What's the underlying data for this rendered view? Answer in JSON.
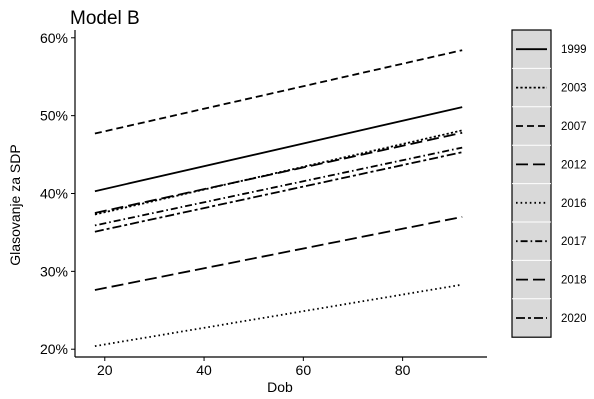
{
  "chart_data": {
    "type": "line",
    "title": "Model B",
    "xlabel": "Dob",
    "ylabel": "Glasovanje za SDP",
    "xlim": [
      14,
      97
    ],
    "ylim": [
      0.19,
      0.61
    ],
    "x_ticks": [
      20,
      40,
      60,
      80
    ],
    "x_tick_labels": [
      "20",
      "40",
      "60",
      "80"
    ],
    "y_ticks": [
      0.2,
      0.3,
      0.4,
      0.5,
      0.6
    ],
    "y_tick_labels": [
      "20%",
      "30%",
      "40%",
      "50%",
      "60%"
    ],
    "grid": false,
    "legend_position": "right",
    "series": [
      {
        "name": "1999",
        "dash": "solid",
        "x": [
          18,
          92
        ],
        "values": [
          0.403,
          0.511
        ]
      },
      {
        "name": "2003",
        "dash": "dotted",
        "x": [
          18,
          92
        ],
        "values": [
          0.373,
          0.481
        ]
      },
      {
        "name": "2007",
        "dash": "dashed",
        "x": [
          18,
          92
        ],
        "values": [
          0.477,
          0.584
        ]
      },
      {
        "name": "2012",
        "dash": "longdash",
        "x": [
          18,
          92
        ],
        "values": [
          0.375,
          0.478
        ]
      },
      {
        "name": "2016",
        "dash": "dotted-fine",
        "x": [
          18,
          92
        ],
        "values": [
          0.204,
          0.283
        ]
      },
      {
        "name": "2017",
        "dash": "dotdash",
        "x": [
          18,
          92
        ],
        "values": [
          0.359,
          0.459
        ]
      },
      {
        "name": "2018",
        "dash": "longdash",
        "x": [
          18,
          92
        ],
        "values": [
          0.276,
          0.37
        ]
      },
      {
        "name": "2020",
        "dash": "twodash",
        "x": [
          18,
          92
        ],
        "values": [
          0.351,
          0.453
        ]
      }
    ]
  },
  "colors": {
    "line": "#000000",
    "legend_fill": "#d9d9d9",
    "legend_border": "#000000"
  }
}
